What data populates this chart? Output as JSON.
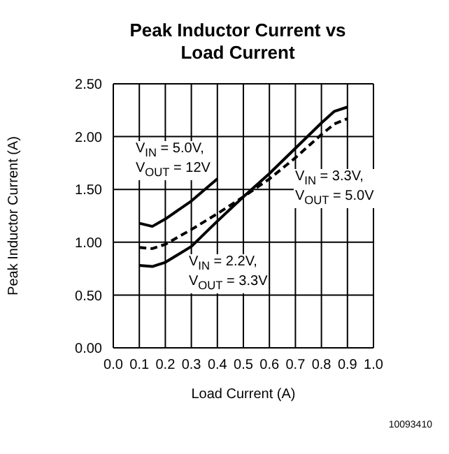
{
  "chart_data": {
    "type": "line",
    "title": "Peak Inductor Current vs Load Current",
    "xlabel": "Load Current (A)",
    "ylabel": "Peak Inductor Current (A)",
    "xlim": [
      0,
      1
    ],
    "xticks": [
      {
        "value": 0,
        "label": "0.0"
      },
      0.1,
      0.2,
      0.3,
      0.4,
      0.5,
      0.6,
      0.7,
      0.8,
      0.9,
      {
        "value": 1,
        "label": "1.0"
      }
    ],
    "ylim": [
      0,
      2.5
    ],
    "yticks": [
      {
        "value": 0,
        "label": "0.00"
      },
      {
        "value": 0.5,
        "label": "0.50"
      },
      {
        "value": 1,
        "label": "1.00"
      },
      {
        "value": 1.5,
        "label": "1.50"
      },
      {
        "value": 2,
        "label": "2.00"
      },
      {
        "value": 2.5,
        "label": "2.50"
      }
    ],
    "grid": true,
    "marker": "none",
    "series": [
      {
        "name": "V$_{IN}$ = 5.0V, V$_{OUT}$ = 12V",
        "color": "#000000",
        "line_style": "solid",
        "x": [
          0.1,
          0.15,
          0.2,
          0.3,
          0.4
        ],
        "values": [
          1.18,
          1.15,
          1.22,
          1.39,
          1.6
        ]
      },
      {
        "name": "V$_{IN}$ = 3.3V, V$_{OUT}$ = 5.0V",
        "color": "#000000",
        "line_style": "dashed",
        "x": [
          0.1,
          0.15,
          0.2,
          0.3,
          0.4,
          0.5,
          0.6,
          0.7,
          0.8,
          0.85,
          0.9
        ],
        "values": [
          0.95,
          0.94,
          0.98,
          1.12,
          1.27,
          1.43,
          1.6,
          1.8,
          2.02,
          2.12,
          2.17
        ]
      },
      {
        "name": "V$_{IN}$ = 2.2V, V$_{OUT}$ = 3.3V",
        "color": "#000000",
        "line_style": "solid",
        "x": [
          0.1,
          0.15,
          0.2,
          0.3,
          0.4,
          0.5,
          0.6,
          0.7,
          0.8,
          0.85,
          0.9
        ],
        "values": [
          0.78,
          0.77,
          0.81,
          0.96,
          1.2,
          1.43,
          1.65,
          1.89,
          2.13,
          2.24,
          2.28
        ]
      }
    ],
    "annotations": [
      "10093410"
    ]
  }
}
